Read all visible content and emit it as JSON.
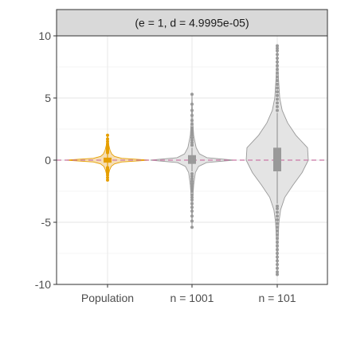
{
  "chart_data": {
    "type": "violin",
    "facet_label": "(e = 1, d = 4.9995e-05)",
    "categories": [
      "Population",
      "n = 1001",
      "n = 101"
    ],
    "ylim": [
      -10,
      10
    ],
    "y_ticks": [
      -10,
      -5,
      0,
      5,
      10
    ],
    "y_tick_labels": [
      "-10",
      "-5",
      "0",
      "5",
      "10"
    ],
    "grid": true,
    "reference_line": {
      "y": 0,
      "style": "dashed",
      "color": "#cc79a7"
    },
    "colors": {
      "population": "#e69f00",
      "population_fill": "#f6dcb0",
      "sample": "#999999",
      "sample_fill": "#e3e3e3",
      "strip_fill": "#d9d9d9",
      "panel_border": "#333333",
      "grid_major": "#ebebeb"
    },
    "series": [
      {
        "category": "Population",
        "color_key": "population",
        "profile": [
          [
            -1.6,
            0.0
          ],
          [
            -1.2,
            0.02
          ],
          [
            -0.8,
            0.05
          ],
          [
            -0.5,
            0.09
          ],
          [
            -0.3,
            0.17
          ],
          [
            -0.15,
            0.34
          ],
          [
            0,
            1.0
          ],
          [
            0.15,
            0.34
          ],
          [
            0.3,
            0.17
          ],
          [
            0.5,
            0.1
          ],
          [
            0.8,
            0.06
          ],
          [
            1.2,
            0.03
          ],
          [
            1.7,
            0.01
          ],
          [
            2.0,
            0.0
          ]
        ],
        "half_width": 0.5,
        "box": {
          "q1": -0.2,
          "median": 0.0,
          "q3": 0.2,
          "whisker_low": -0.5,
          "whisker_high": 0.5
        },
        "points": [
          -1.6,
          -1.4,
          -1.2,
          -1.0,
          -0.9,
          -0.8,
          -0.7,
          -0.6,
          0.6,
          0.7,
          0.8,
          0.9,
          1.0,
          1.1,
          1.3,
          1.5,
          1.7,
          2.0
        ]
      },
      {
        "category": "n = 1001",
        "color_key": "sample",
        "profile": [
          [
            -5.4,
            0.0
          ],
          [
            -4.0,
            0.01
          ],
          [
            -3.0,
            0.02
          ],
          [
            -2.0,
            0.04
          ],
          [
            -1.0,
            0.08
          ],
          [
            -0.5,
            0.16
          ],
          [
            -0.2,
            0.35
          ],
          [
            0,
            1.0
          ],
          [
            0.2,
            0.36
          ],
          [
            0.5,
            0.18
          ],
          [
            1.0,
            0.1
          ],
          [
            1.5,
            0.07
          ],
          [
            2.0,
            0.04
          ],
          [
            3.0,
            0.02
          ],
          [
            4.0,
            0.01
          ],
          [
            5.3,
            0.0
          ]
        ],
        "half_width": 0.5,
        "box": {
          "q1": -0.3,
          "median": 0.05,
          "q3": 0.4,
          "whisker_low": -0.9,
          "whisker_high": 1.0
        },
        "points": [
          -5.4,
          -4.9,
          -4.5,
          -4.1,
          -3.8,
          -3.5,
          -3.2,
          -3.0,
          -2.8,
          -2.5,
          -2.3,
          -2.1,
          -1.9,
          -1.7,
          -1.5,
          -1.3,
          -1.1,
          1.2,
          1.4,
          1.6,
          1.8,
          2.0,
          2.2,
          2.4,
          2.6,
          2.9,
          3.2,
          3.6,
          4.0,
          4.5,
          5.3
        ]
      },
      {
        "category": "n = 101",
        "color_key": "sample",
        "profile": [
          [
            -9.2,
            0.0
          ],
          [
            -8.0,
            0.01
          ],
          [
            -6.5,
            0.02
          ],
          [
            -5.0,
            0.04
          ],
          [
            -4.0,
            0.08
          ],
          [
            -3.0,
            0.18
          ],
          [
            -2.0,
            0.38
          ],
          [
            -1.0,
            0.6
          ],
          [
            0,
            0.75
          ],
          [
            1.0,
            0.73
          ],
          [
            2.0,
            0.45
          ],
          [
            3.0,
            0.25
          ],
          [
            4.0,
            0.12
          ],
          [
            5.0,
            0.06
          ],
          [
            6.5,
            0.03
          ],
          [
            8.0,
            0.01
          ],
          [
            9.0,
            0.0
          ]
        ],
        "half_width": 0.5,
        "box": {
          "q1": -0.9,
          "median": 0.3,
          "q3": 1.0,
          "whisker_low": -3.5,
          "whisker_high": 3.8
        },
        "points": [
          -9.2,
          -9.0,
          -8.7,
          -8.4,
          -8.1,
          -7.8,
          -7.5,
          -7.2,
          -6.9,
          -6.6,
          -6.3,
          -6.0,
          -5.7,
          -5.4,
          -5.1,
          -4.8,
          -4.5,
          -4.2,
          -3.9,
          -3.7,
          4.0,
          4.3,
          4.6,
          4.9,
          5.2,
          5.5,
          5.8,
          6.1,
          6.4,
          6.7,
          7.0,
          7.3,
          7.6,
          7.9,
          8.2,
          8.5,
          8.8,
          9.0,
          9.2
        ]
      }
    ]
  }
}
